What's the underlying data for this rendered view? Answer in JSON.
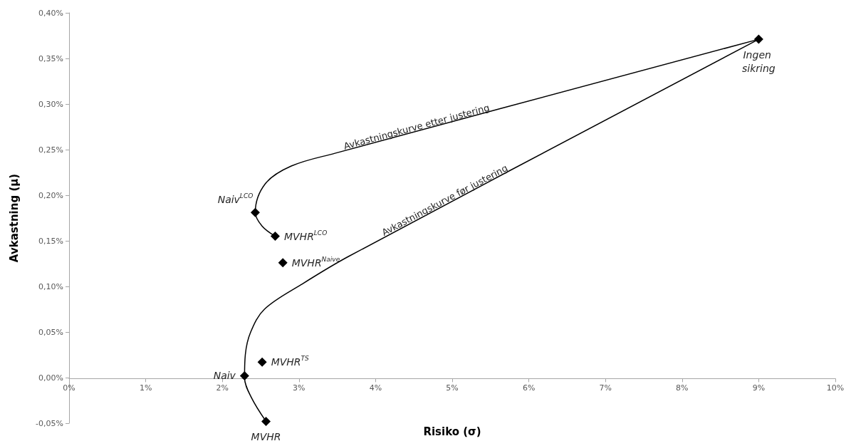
{
  "chart_data": {
    "type": "scatter",
    "xlabel": "Risiko (σ)",
    "ylabel": "Avkastning (μ)",
    "xlim": [
      0,
      10
    ],
    "ylim": [
      -0.05,
      0.4
    ],
    "xticks": [
      {
        "value": 0,
        "label": "0%"
      },
      {
        "value": 1,
        "label": "1%"
      },
      {
        "value": 2,
        "label": "2%"
      },
      {
        "value": 3,
        "label": "3%"
      },
      {
        "value": 4,
        "label": "4%"
      },
      {
        "value": 5,
        "label": "5%"
      },
      {
        "value": 6,
        "label": "6%"
      },
      {
        "value": 7,
        "label": "7%"
      },
      {
        "value": 8,
        "label": "8%"
      },
      {
        "value": 9,
        "label": "9%"
      },
      {
        "value": 10,
        "label": "10%"
      }
    ],
    "yticks": [
      {
        "value": -0.05,
        "label": "-0,05%"
      },
      {
        "value": 0,
        "label": "0,00%"
      },
      {
        "value": 0.05,
        "label": "0,05%"
      },
      {
        "value": 0.1,
        "label": "0,10%"
      },
      {
        "value": 0.15,
        "label": "0,15%"
      },
      {
        "value": 0.2,
        "label": "0,20%"
      },
      {
        "value": 0.25,
        "label": "0,25%"
      },
      {
        "value": 0.3,
        "label": "0,30%"
      },
      {
        "value": 0.35,
        "label": "0,35%"
      },
      {
        "value": 0.4,
        "label": "0,40%"
      }
    ],
    "grid": false,
    "legend": false,
    "marker": "diamond",
    "series": [
      {
        "type": "line",
        "color": "#000000",
        "marker": "none",
        "x": [
          2.69,
          2.52,
          2.43,
          2.56,
          2.9,
          3.47,
          9.0
        ],
        "values": [
          0.155,
          0.166,
          0.181,
          0.2125,
          0.232,
          0.246,
          0.371
        ]
      },
      {
        "type": "line",
        "color": "#000000",
        "marker": "none",
        "x": [
          2.57,
          2.38,
          2.29,
          2.3,
          2.37,
          2.55,
          3.03,
          3.65,
          9.0
        ],
        "values": [
          -0.048,
          -0.022,
          0.0,
          0.025,
          0.05,
          0.075,
          0.102,
          0.133,
          0.371
        ]
      },
      {
        "name": "Ingen sikring",
        "color": "#000000",
        "x": [
          9.0
        ],
        "values": [
          0.371
        ]
      },
      {
        "name": "Naiv$^{LCO}$",
        "color": "#000000",
        "x": [
          2.43
        ],
        "values": [
          0.181
        ]
      },
      {
        "name": "MVHR$^{LCO}$",
        "color": "#000000",
        "x": [
          2.69
        ],
        "values": [
          0.155
        ]
      },
      {
        "name": "MVHR$^{Naive}$",
        "color": "#000000",
        "x": [
          2.79
        ],
        "values": [
          0.126
        ]
      },
      {
        "name": "MVHR$^{TS}$",
        "color": "#000000",
        "x": [
          2.52
        ],
        "values": [
          0.017
        ]
      },
      {
        "name": "Naiv",
        "color": "#000000",
        "x": [
          2.29
        ],
        "values": [
          0.002
        ]
      },
      {
        "name": "MVHR",
        "color": "#000000",
        "x": [
          2.57
        ],
        "values": [
          -0.048
        ]
      }
    ],
    "annotations": [
      {
        "text": "Avkastningskurve etter justering",
        "x": 4.55,
        "y": 0.27
      },
      {
        "text": "Avkastningskurve før justering",
        "x": 4.93,
        "y": 0.19
      }
    ]
  }
}
